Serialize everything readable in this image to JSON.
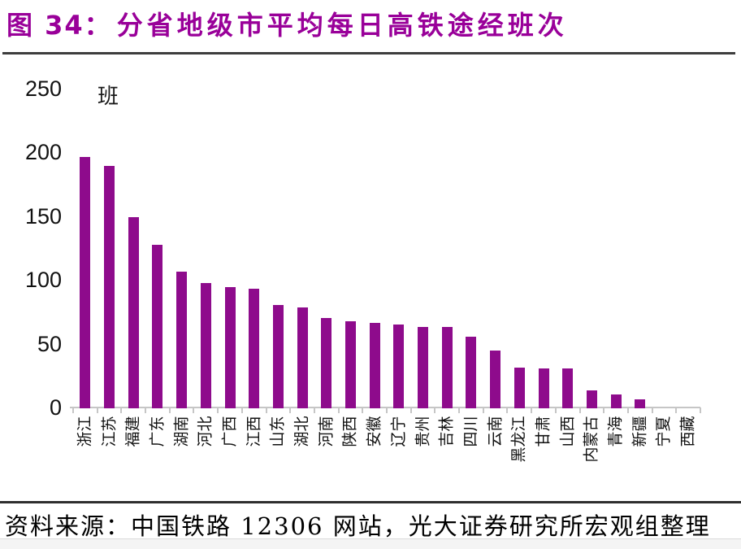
{
  "header": {
    "figure_label": "图 34：",
    "title": "分省地级市平均每日高铁途经班次"
  },
  "footer": {
    "source": "资料来源：中国铁路 12306 网站，光大证券研究所宏观组整理"
  },
  "colors": {
    "bar": "#8E0B8C",
    "title": "#990099",
    "axis": "#c6c6c6",
    "rule": "#3d3d3d"
  },
  "chart_data": {
    "type": "bar",
    "title": "分省地级市平均每日高铁途经班次",
    "unit_label": "班",
    "ylabel": "班",
    "xlabel": "",
    "categories": [
      "浙江",
      "江苏",
      "福建",
      "广东",
      "湖南",
      "河北",
      "广西",
      "江西",
      "山东",
      "湖北",
      "河南",
      "陕西",
      "安徽",
      "辽宁",
      "贵州",
      "吉林",
      "四川",
      "云南",
      "黑龙江",
      "甘肃",
      "山西",
      "内蒙古",
      "青海",
      "新疆",
      "宁夏",
      "西藏"
    ],
    "values": [
      197,
      190,
      150,
      128,
      107,
      98,
      95,
      94,
      81,
      79,
      71,
      68,
      67,
      66,
      64,
      64,
      56,
      45,
      32,
      31,
      31,
      14,
      11,
      7,
      0,
      0
    ],
    "ylim": [
      0,
      250
    ],
    "yticks": [
      0,
      50,
      100,
      150,
      200,
      250
    ],
    "grid": false,
    "legend": false,
    "bar_color": "#8E0B8C"
  }
}
